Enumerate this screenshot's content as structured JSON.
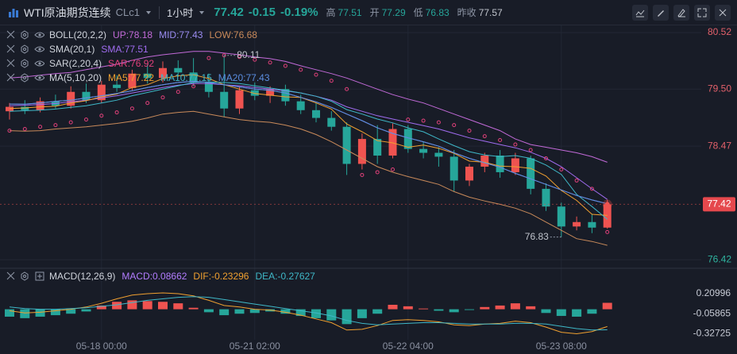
{
  "header": {
    "title": "WTI原油期货连续",
    "symbol": "CLc1",
    "interval": "1小时",
    "price": "77.42",
    "change": "-0.15",
    "change_pct": "-0.19%",
    "stats": [
      {
        "label": "高",
        "value": "77.51"
      },
      {
        "label": "开",
        "value": "77.29"
      },
      {
        "label": "低",
        "value": "76.83"
      },
      {
        "label": "昨收",
        "value": "77.57"
      }
    ]
  },
  "chart_data": [
    {
      "type": "candlestick",
      "up_color": "#ef5350",
      "down_color": "#26a69a",
      "candles": [
        [
          79.1,
          79.25,
          78.95,
          79.18
        ],
        [
          79.18,
          79.3,
          79.05,
          79.12
        ],
        [
          79.12,
          79.35,
          79.08,
          79.28
        ],
        [
          79.28,
          79.4,
          79.15,
          79.2
        ],
        [
          79.2,
          79.55,
          79.15,
          79.45
        ],
        [
          79.45,
          79.6,
          79.25,
          79.3
        ],
        [
          79.3,
          79.65,
          79.25,
          79.58
        ],
        [
          79.58,
          79.75,
          79.45,
          79.52
        ],
        [
          79.52,
          79.85,
          79.48,
          79.78
        ],
        [
          79.78,
          79.95,
          79.6,
          79.7
        ],
        [
          79.7,
          80.0,
          79.62,
          79.88
        ],
        [
          79.88,
          80.02,
          79.72,
          79.8
        ],
        [
          79.8,
          80.06,
          79.55,
          79.62
        ],
        [
          79.62,
          79.78,
          79.35,
          79.45
        ],
        [
          79.45,
          80.11,
          79.0,
          79.15
        ],
        [
          79.15,
          79.55,
          79.05,
          79.48
        ],
        [
          79.48,
          79.62,
          79.3,
          79.38
        ],
        [
          79.38,
          79.55,
          79.25,
          79.5
        ],
        [
          79.5,
          79.58,
          79.2,
          79.28
        ],
        [
          79.28,
          79.4,
          79.05,
          79.12
        ],
        [
          79.12,
          79.25,
          78.9,
          78.98
        ],
        [
          78.98,
          79.1,
          78.75,
          78.82
        ],
        [
          78.82,
          78.9,
          77.95,
          78.15
        ],
        [
          78.15,
          78.7,
          78.05,
          78.6
        ],
        [
          78.6,
          78.85,
          78.15,
          78.3
        ],
        [
          78.3,
          78.88,
          78.25,
          78.78
        ],
        [
          78.78,
          78.85,
          78.35,
          78.42
        ],
        [
          78.42,
          78.55,
          78.25,
          78.35
        ],
        [
          78.35,
          78.45,
          78.1,
          78.28
        ],
        [
          78.28,
          78.4,
          77.65,
          77.85
        ],
        [
          77.85,
          78.15,
          77.75,
          78.1
        ],
        [
          78.1,
          78.35,
          78.0,
          78.3
        ],
        [
          78.3,
          78.4,
          77.9,
          78.0
        ],
        [
          78.0,
          78.35,
          77.95,
          78.25
        ],
        [
          78.25,
          78.3,
          77.6,
          77.7
        ],
        [
          77.7,
          77.8,
          77.3,
          77.38
        ],
        [
          77.38,
          77.45,
          76.83,
          77.02
        ],
        [
          77.02,
          77.2,
          76.95,
          77.1
        ],
        [
          77.1,
          77.25,
          76.9,
          77.0
        ],
        [
          77.0,
          77.5,
          76.98,
          77.42
        ]
      ],
      "indicators": [
        {
          "label": "BOLL(20,2,2)",
          "series": [
            {
              "name": "UP:78.18",
              "color": "#c26ad8",
              "values": [
                79.7,
                79.72,
                79.75,
                79.78,
                79.8,
                79.85,
                79.9,
                79.95,
                80.02,
                80.08,
                80.12,
                80.15,
                80.18,
                80.18,
                80.15,
                80.12,
                80.08,
                80.05,
                80.0,
                79.92,
                79.85,
                79.78,
                79.7,
                79.6,
                79.5,
                79.4,
                79.32,
                79.25,
                79.15,
                79.05,
                78.95,
                78.85,
                78.75,
                78.6,
                78.5,
                78.45,
                78.4,
                78.35,
                78.28,
                78.18
              ]
            },
            {
              "name": "MID:77.43",
              "color": "#9a8cf0",
              "values": [
                79.23,
                79.23,
                79.25,
                79.28,
                79.3,
                79.34,
                79.38,
                79.42,
                79.47,
                79.53,
                79.58,
                79.62,
                79.64,
                79.62,
                79.58,
                79.54,
                79.5,
                79.48,
                79.43,
                79.35,
                79.27,
                79.17,
                79.05,
                78.93,
                78.8,
                78.7,
                78.62,
                78.55,
                78.47,
                78.35,
                78.25,
                78.17,
                78.09,
                77.98,
                77.88,
                77.78,
                77.68,
                77.58,
                77.5,
                77.43
              ]
            },
            {
              "name": "LOW:76.68",
              "color": "#c98a5a",
              "values": [
                78.75,
                78.74,
                78.75,
                78.78,
                78.8,
                78.82,
                78.85,
                78.88,
                78.92,
                78.98,
                79.05,
                79.08,
                79.1,
                79.05,
                79.0,
                78.95,
                78.92,
                78.9,
                78.85,
                78.78,
                78.68,
                78.55,
                78.4,
                78.25,
                78.1,
                78.0,
                77.92,
                77.85,
                77.78,
                77.65,
                77.55,
                77.48,
                77.42,
                77.35,
                77.25,
                77.1,
                76.95,
                76.8,
                76.75,
                76.68
              ]
            }
          ]
        },
        {
          "label": "SMA(20,1)",
          "series": [
            {
              "name": "SMA:77.51",
              "color": "#a06cf0",
              "values": [
                79.2,
                79.21,
                79.22,
                79.24,
                79.27,
                79.3,
                79.34,
                79.38,
                79.43,
                79.48,
                79.53,
                79.57,
                79.6,
                79.6,
                79.58,
                79.56,
                79.53,
                79.5,
                79.47,
                79.43,
                79.37,
                79.3,
                79.18,
                79.1,
                79.02,
                78.96,
                78.9,
                78.84,
                78.78,
                78.7,
                78.62,
                78.56,
                78.5,
                78.44,
                78.36,
                78.25,
                78.1,
                77.9,
                77.7,
                77.51
              ]
            }
          ]
        },
        {
          "label": "SAR(2,20,4)",
          "series": [
            {
              "name": "SAR:76.92",
              "color": "#e0407a",
              "style": "dots",
              "values": [
                78.75,
                78.78,
                78.82,
                78.85,
                78.9,
                78.95,
                79.02,
                79.08,
                79.15,
                79.25,
                79.35,
                79.45,
                79.55,
                80.06,
                80.11,
                80.08,
                80.03,
                79.98,
                79.92,
                79.85,
                79.76,
                79.65,
                79.5,
                77.95,
                78.0,
                78.05,
                78.95,
                78.93,
                78.9,
                78.85,
                78.75,
                78.65,
                78.58,
                78.5,
                78.4,
                78.25,
                78.05,
                77.85,
                77.7,
                76.92
              ]
            }
          ]
        },
        {
          "label": "MA(5,10,20)",
          "series": [
            {
              "name": "MA5:77.22",
              "color": "#f0a030",
              "values": [
                79.15,
                79.16,
                79.18,
                79.19,
                79.25,
                79.29,
                79.36,
                79.41,
                79.53,
                79.58,
                79.69,
                79.74,
                79.76,
                79.69,
                79.58,
                79.5,
                79.42,
                79.39,
                79.36,
                79.35,
                79.25,
                79.14,
                78.87,
                78.73,
                78.57,
                78.53,
                78.45,
                78.49,
                78.43,
                78.34,
                78.2,
                78.18,
                78.11,
                78.1,
                78.07,
                77.93,
                77.67,
                77.49,
                77.24,
                77.22
              ]
            },
            {
              "name": "MA10:77.15",
              "color": "#3fb8c8",
              "values": [
                79.1,
                79.11,
                79.12,
                79.14,
                79.17,
                79.2,
                79.25,
                79.3,
                79.38,
                79.44,
                79.5,
                79.56,
                79.62,
                79.63,
                79.62,
                79.6,
                79.56,
                79.52,
                79.48,
                79.43,
                79.37,
                79.28,
                79.13,
                79.05,
                78.96,
                78.89,
                78.8,
                78.73,
                78.6,
                78.48,
                78.37,
                78.31,
                78.28,
                78.3,
                78.25,
                78.13,
                77.96,
                77.6,
                77.38,
                77.15
              ]
            },
            {
              "name": "MA20:77.43",
              "color": "#5a8de0",
              "values": [
                79.23,
                79.23,
                79.25,
                79.28,
                79.3,
                79.34,
                79.38,
                79.42,
                79.47,
                79.53,
                79.58,
                79.62,
                79.64,
                79.62,
                79.58,
                79.54,
                79.5,
                79.48,
                79.43,
                79.35,
                79.27,
                79.17,
                79.05,
                78.93,
                78.8,
                78.7,
                78.62,
                78.55,
                78.47,
                78.35,
                78.25,
                78.17,
                78.09,
                77.98,
                77.88,
                77.78,
                77.68,
                77.58,
                77.5,
                77.43
              ]
            }
          ]
        }
      ],
      "ylim": [
        76.28,
        80.65
      ],
      "yticks": [
        80.52,
        {
          "value": 79.5,
          "label": "79.50"
        },
        78.47,
        76.42
      ],
      "grid": true
    },
    {
      "type": "macd",
      "label": "MACD(12,26,9)",
      "up_color": "#ef5350",
      "down_color": "#26a69a",
      "series": [
        {
          "name": "MACD:0.08662",
          "color": "#b37dff",
          "style": "histogram",
          "values": [
            -0.1,
            -0.12,
            -0.1,
            -0.08,
            -0.06,
            -0.03,
            0.05,
            0.1,
            0.12,
            0.11,
            0.1,
            0.08,
            0.02,
            -0.04,
            -0.08,
            -0.06,
            -0.05,
            -0.03,
            -0.06,
            -0.09,
            -0.12,
            -0.15,
            -0.2,
            -0.12,
            -0.06,
            0.06,
            0.04,
            0.01,
            -0.02,
            -0.04,
            -0.01,
            0.03,
            0.05,
            0.08,
            0.04,
            -0.05,
            -0.09,
            -0.1,
            -0.06,
            0.08662
          ]
        },
        {
          "name": "DIF:-0.23296",
          "color": "#f0a030",
          "values": [
            -0.02,
            -0.05,
            -0.04,
            -0.02,
            0.0,
            0.03,
            0.08,
            0.14,
            0.19,
            0.21,
            0.22,
            0.21,
            0.18,
            0.12,
            0.05,
            0.03,
            0.0,
            -0.01,
            -0.04,
            -0.08,
            -0.13,
            -0.18,
            -0.28,
            -0.27,
            -0.22,
            -0.15,
            -0.14,
            -0.15,
            -0.17,
            -0.21,
            -0.22,
            -0.2,
            -0.19,
            -0.16,
            -0.18,
            -0.24,
            -0.31,
            -0.33,
            -0.3,
            -0.23296
          ]
        },
        {
          "name": "DEA:-0.27627",
          "color": "#3fb8c8",
          "values": [
            0.03,
            0.01,
            0.0,
            0.0,
            0.01,
            0.02,
            0.04,
            0.06,
            0.09,
            0.12,
            0.14,
            0.16,
            0.17,
            0.16,
            0.13,
            0.1,
            0.07,
            0.04,
            0.01,
            -0.02,
            -0.05,
            -0.09,
            -0.15,
            -0.19,
            -0.21,
            -0.2,
            -0.19,
            -0.18,
            -0.18,
            -0.19,
            -0.2,
            -0.2,
            -0.2,
            -0.19,
            -0.19,
            -0.2,
            -0.23,
            -0.26,
            -0.28,
            -0.27627
          ]
        }
      ],
      "categories": [
        null,
        null,
        null,
        null,
        null,
        null,
        "05-18 00:00",
        null,
        null,
        null,
        null,
        null,
        null,
        null,
        null,
        null,
        "05-21 02:00",
        null,
        null,
        null,
        null,
        null,
        null,
        null,
        null,
        null,
        "05-22 04:00",
        null,
        null,
        null,
        null,
        null,
        null,
        null,
        null,
        null,
        "05-23 08:00",
        null,
        null,
        null
      ],
      "ylim": [
        -0.41,
        0.53
      ],
      "yticks": [
        0.20996,
        -0.05865,
        -0.32725
      ]
    }
  ]
}
